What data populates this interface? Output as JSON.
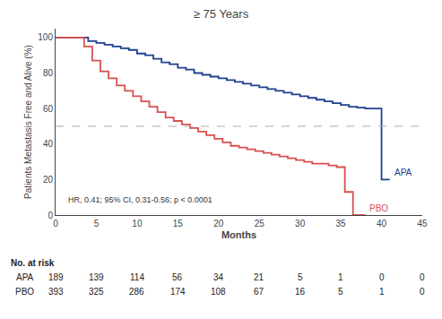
{
  "chart_data": {
    "type": "line",
    "title": "≥ 75 Years",
    "xlabel": "Months",
    "ylabel": "Patients Metastasis Free and Alive (%)",
    "xlim": [
      0,
      45
    ],
    "ylim": [
      0,
      105
    ],
    "xticks": [
      0,
      5,
      10,
      15,
      20,
      25,
      30,
      35,
      40,
      45
    ],
    "yticks": [
      0,
      20,
      40,
      60,
      80,
      100
    ],
    "grid": false,
    "median_line": 50,
    "annotations": [
      "HR, 0.41; 95% CI, 0.31-0.56; p < 0.0001"
    ],
    "series": [
      {
        "name": "APA",
        "color": "#1f3f8f",
        "x": [
          0,
          4,
          4,
          5,
          5,
          6,
          6,
          7,
          7,
          8,
          8,
          9,
          9,
          10,
          10,
          11,
          11,
          12,
          12,
          13,
          13,
          14,
          14,
          15,
          15,
          16,
          16,
          17,
          17,
          18,
          18,
          19,
          19,
          20,
          20,
          21,
          21,
          22,
          22,
          23,
          23,
          24,
          24,
          25,
          25,
          26,
          26,
          27,
          27,
          28,
          28,
          29,
          29,
          30,
          30,
          31,
          31,
          32,
          32,
          33,
          33,
          34,
          34,
          35,
          35,
          36,
          36,
          37,
          37,
          38,
          38,
          40,
          40,
          41
        ],
        "values": [
          100,
          100,
          98,
          98,
          97,
          97,
          96,
          96,
          95,
          95,
          94,
          94,
          93,
          93,
          91,
          91,
          90,
          90,
          88,
          88,
          86,
          86,
          85,
          85,
          83,
          83,
          82,
          82,
          80,
          80,
          79,
          79,
          78,
          78,
          77,
          77,
          76,
          76,
          75,
          75,
          74,
          74,
          73,
          73,
          72,
          72,
          71,
          71,
          70,
          70,
          69,
          69,
          68,
          68,
          67,
          67,
          66,
          66,
          65,
          65,
          64,
          64,
          63,
          63,
          62,
          62,
          61,
          61,
          60.5,
          60.5,
          60,
          60,
          20,
          20
        ]
      },
      {
        "name": "PBO",
        "color": "#d94f4f",
        "x": [
          0,
          3.5,
          3.5,
          4.5,
          4.5,
          5.5,
          5.5,
          6.5,
          6.5,
          7.5,
          7.5,
          8.5,
          8.5,
          9.5,
          9.5,
          10.5,
          10.5,
          11.5,
          11.5,
          12.5,
          12.5,
          13.5,
          13.5,
          14.5,
          14.5,
          15.5,
          15.5,
          16.5,
          16.5,
          17.5,
          17.5,
          18.5,
          18.5,
          19.5,
          19.5,
          20.5,
          20.5,
          21.5,
          21.5,
          22.5,
          22.5,
          23.5,
          23.5,
          24.5,
          24.5,
          25.5,
          25.5,
          26.5,
          26.5,
          27.5,
          27.5,
          28.5,
          28.5,
          29.5,
          29.5,
          30.5,
          30.5,
          31.5,
          31.5,
          32.5,
          32.5,
          33.5,
          33.5,
          34.5,
          34.5,
          35.5,
          35.5,
          36.5,
          36.5,
          37.5,
          37.5,
          38
        ],
        "values": [
          100,
          100,
          95,
          95,
          87,
          87,
          81,
          81,
          77,
          77,
          73,
          73,
          70,
          70,
          67,
          67,
          64,
          64,
          61,
          61,
          58,
          58,
          55,
          55,
          53,
          53,
          51,
          51,
          49,
          49,
          47,
          47,
          45,
          45,
          43,
          43,
          41,
          41,
          39,
          39,
          38,
          38,
          37,
          37,
          36,
          36,
          35,
          35,
          34,
          34,
          33,
          33,
          32,
          32,
          31,
          31,
          30,
          30,
          29,
          29,
          29,
          29,
          28,
          28,
          27,
          27,
          13,
          13,
          0,
          0,
          0,
          0
        ]
      }
    ],
    "at_risk": {
      "label": "No. at risk",
      "times": [
        0,
        5,
        10,
        15,
        20,
        25,
        30,
        35,
        40,
        45
      ],
      "rows": [
        {
          "name": "APA",
          "values": [
            189,
            139,
            114,
            56,
            34,
            21,
            5,
            1,
            0,
            0
          ]
        },
        {
          "name": "PBO",
          "values": [
            393,
            325,
            286,
            174,
            108,
            67,
            16,
            5,
            1,
            0
          ]
        }
      ]
    }
  }
}
